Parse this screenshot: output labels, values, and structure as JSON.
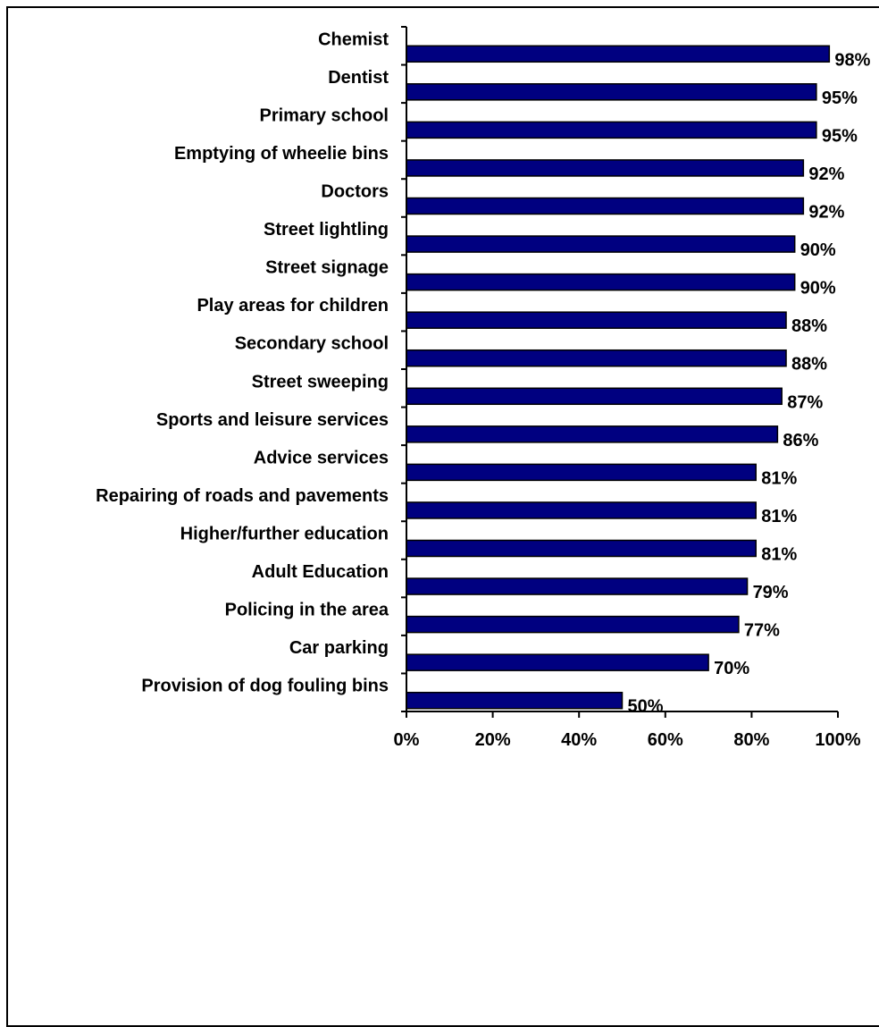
{
  "chart_data": {
    "type": "bar",
    "orientation": "horizontal",
    "categories": [
      "Chemist",
      "Dentist",
      "Primary school",
      "Emptying of wheelie bins",
      "Doctors",
      "Street lightling",
      "Street signage",
      "Play areas for children",
      "Secondary school",
      "Street sweeping",
      "Sports and leisure services",
      "Advice services",
      "Repairing of roads and pavements",
      "Higher/further education",
      "Adult Education",
      "Policing in the area",
      "Car parking",
      "Provision of dog fouling bins"
    ],
    "values": [
      98,
      95,
      95,
      92,
      92,
      90,
      90,
      88,
      88,
      87,
      86,
      81,
      81,
      81,
      79,
      77,
      70,
      50
    ],
    "data_labels": [
      "98%",
      "95%",
      "95%",
      "92%",
      "92%",
      "90%",
      "90%",
      "88%",
      "88%",
      "87%",
      "86%",
      "81%",
      "81%",
      "81%",
      "79%",
      "77%",
      "70%",
      "50%"
    ],
    "x_ticks": [
      "0%",
      "20%",
      "40%",
      "60%",
      "80%",
      "100%"
    ],
    "xlim": [
      0,
      100
    ],
    "bar_color": "#000080",
    "title": "",
    "xlabel": "",
    "ylabel": "",
    "grid": false,
    "legend": "none"
  }
}
